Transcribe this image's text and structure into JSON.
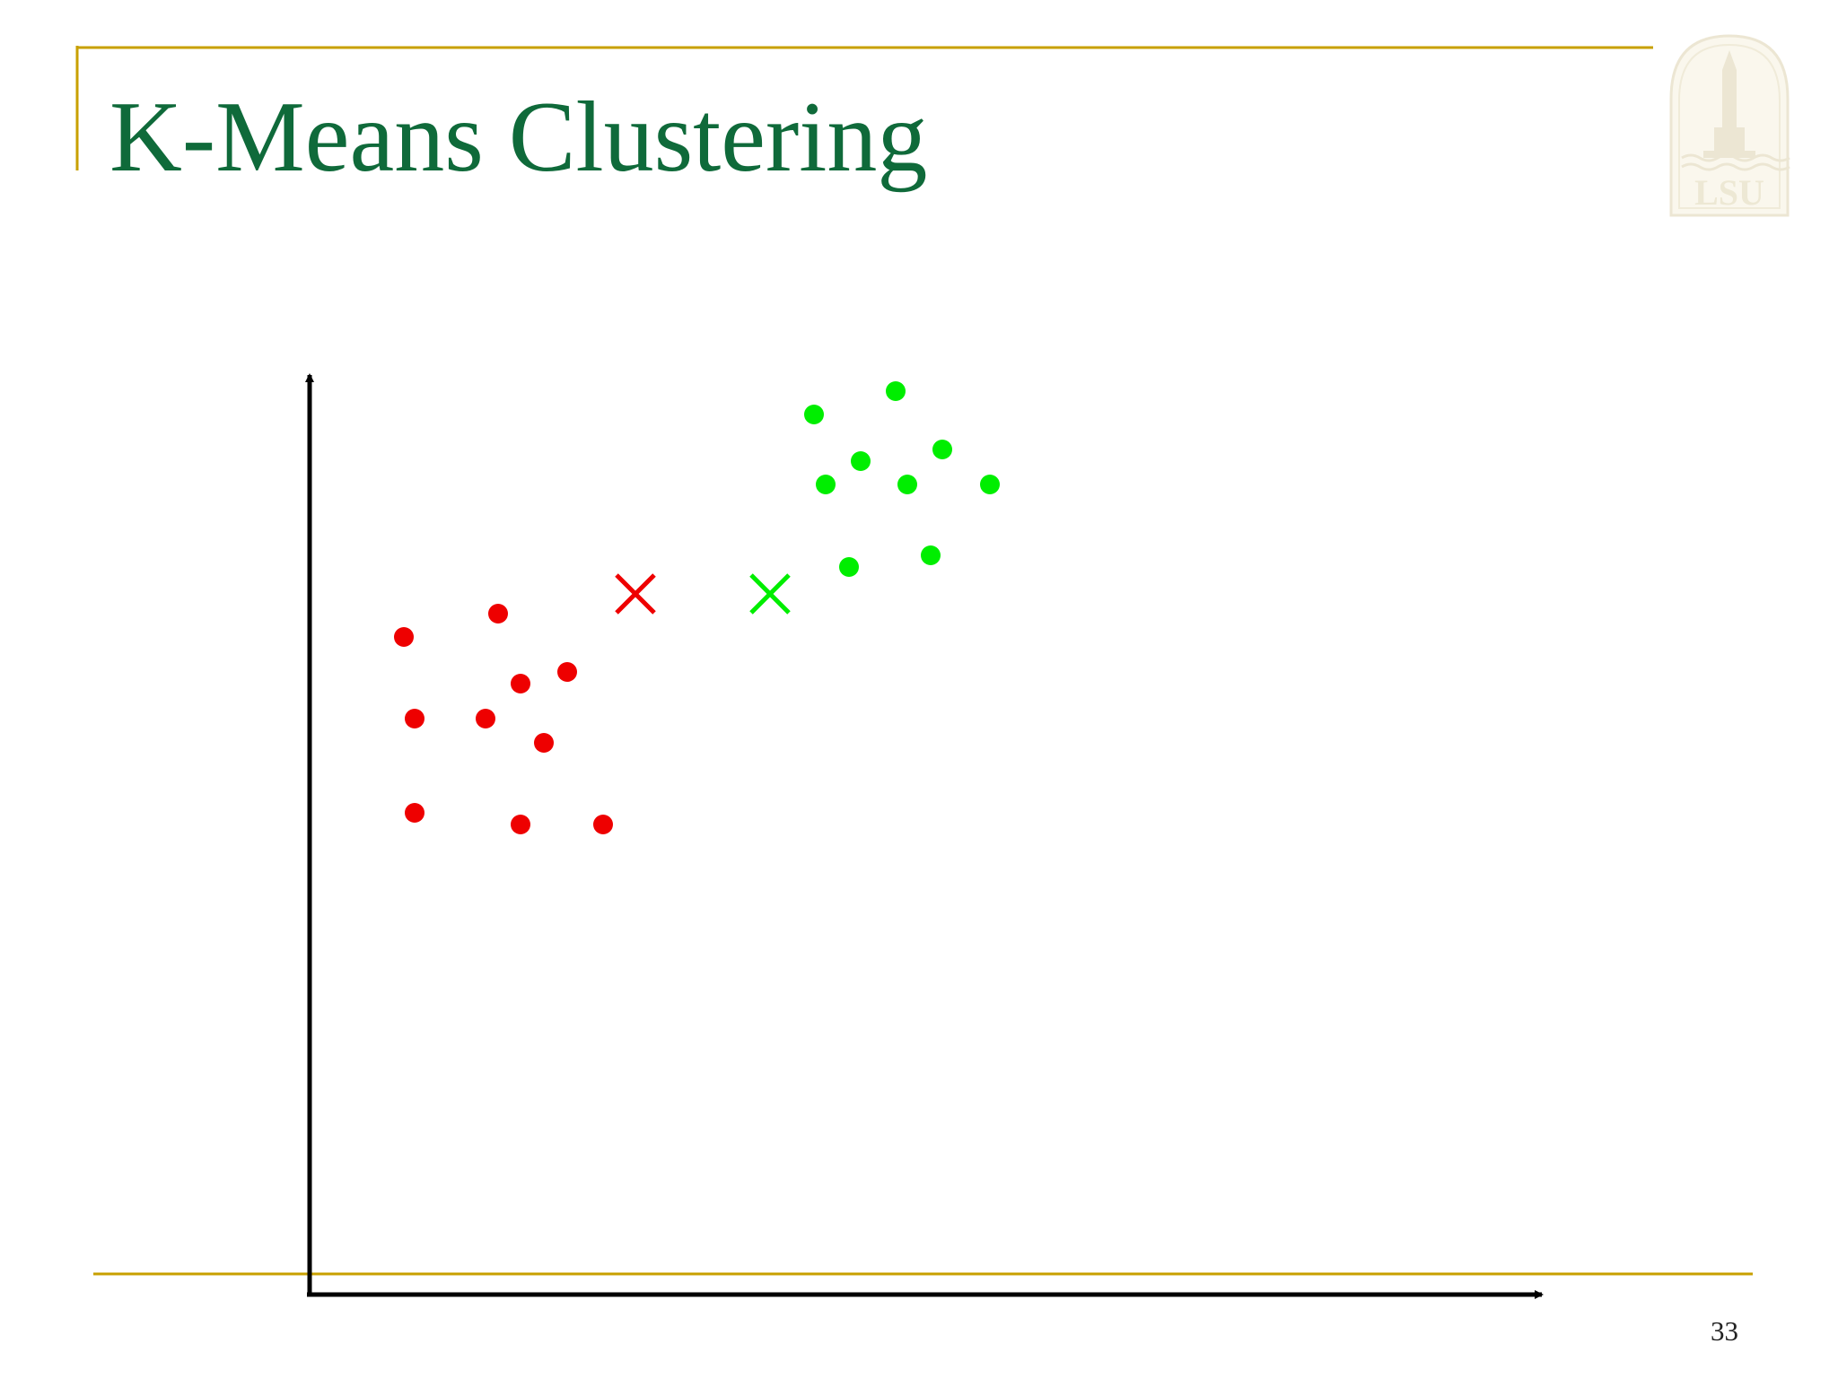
{
  "slide": {
    "title": "K-Means Clustering",
    "page_number": "33",
    "accent_color": "#c8a000",
    "title_color": "#0f6a3a"
  },
  "logo": {
    "text": "LSU",
    "icon": "lsu-tower-logo-icon"
  },
  "diagram": {
    "axes": {
      "x": {
        "direction": "right",
        "icon": "arrow-right-icon"
      },
      "y": {
        "direction": "up",
        "icon": "arrow-up-icon"
      }
    },
    "point_style": "filled-circle",
    "centroid_style": "x-mark",
    "clusters": [
      {
        "color": "#ee0000",
        "points": [
          [
            450,
            710
          ],
          [
            555,
            684
          ],
          [
            632,
            749
          ],
          [
            580,
            762
          ],
          [
            462,
            801
          ],
          [
            541,
            801
          ],
          [
            606,
            828
          ],
          [
            462,
            906
          ],
          [
            580,
            919
          ],
          [
            672,
            919
          ]
        ],
        "centroid": [
          708,
          662
        ]
      },
      {
        "color": "#00ee00",
        "points": [
          [
            998,
            436
          ],
          [
            907,
            462
          ],
          [
            1050,
            501
          ],
          [
            959,
            514
          ],
          [
            920,
            540
          ],
          [
            1011,
            540
          ],
          [
            1103,
            540
          ],
          [
            946,
            632
          ],
          [
            1037,
            619
          ]
        ],
        "centroid": [
          858,
          662
        ]
      }
    ]
  }
}
